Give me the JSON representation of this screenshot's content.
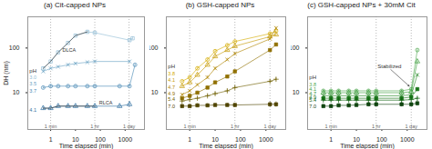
{
  "chart_data": [
    {
      "type": "line",
      "title": "(a) Cit-capped NPs",
      "xlabel": "Time elapsed (min)",
      "ylabel": "DH (nm)",
      "log": true,
      "xlim": [
        0.12,
        6000
      ],
      "ylim": [
        1.5,
        500
      ],
      "xticks": [
        1,
        10,
        100,
        1000
      ],
      "yticks": [
        10,
        100
      ],
      "vlines": [
        1,
        60,
        1440
      ],
      "series": [
        {
          "name": "3.0",
          "color": "#92bdd6",
          "marker": "open-square",
          "x": [
            0.5,
            1,
            2,
            5,
            10,
            30,
            60,
            1500,
            2000
          ],
          "values": [
            35,
            50,
            80,
            130,
            190,
            230,
            220,
            150,
            165
          ],
          "yerr": [
            3,
            4,
            6,
            10,
            15,
            20,
            18,
            12,
            14
          ],
          "label_xy": [
            0.14,
            22
          ]
        },
        {
          "name": "3.5",
          "color": "#6ba3c4",
          "marker": "x",
          "x": [
            0.5,
            1,
            2,
            5,
            10,
            30,
            60,
            1500
          ],
          "values": [
            30,
            35,
            38,
            42,
            45,
            48,
            50,
            50
          ],
          "yerr": [
            2,
            2,
            2,
            3,
            3,
            3,
            3,
            3
          ],
          "label_xy": [
            0.14,
            16
          ]
        },
        {
          "name": "3.7",
          "color": "#4a8ab5",
          "marker": "open-circle",
          "x": [
            0.5,
            1,
            2,
            5,
            10,
            30,
            60,
            600,
            1500,
            2500
          ],
          "values": [
            13,
            14,
            14,
            14,
            14,
            14,
            14,
            14,
            14,
            42
          ],
          "yerr": [
            1,
            1,
            1,
            1,
            1,
            1,
            1,
            1,
            1,
            3
          ],
          "label_xy": [
            0.14,
            11
          ]
        },
        {
          "name": "4.1",
          "color": "#3070a0",
          "marker": "open-triangle",
          "x": [
            0.5,
            1,
            2,
            5,
            10,
            30,
            60,
            600,
            1500
          ],
          "values": [
            4.5,
            4.5,
            5,
            5,
            5,
            5,
            5,
            5,
            5.5
          ],
          "yerr": [
            0.5,
            0.5,
            0.5,
            0.5,
            0.5,
            0.5,
            0.5,
            0.5,
            0.8
          ],
          "label_xy": [
            0.14,
            4.0
          ]
        },
        {
          "name": "DLCA",
          "color": "#333333",
          "x": [
            0.5,
            1,
            2,
            5,
            10,
            30
          ],
          "values": [
            35,
            50,
            80,
            130,
            190,
            230
          ],
          "label_xy": [
            3,
            90
          ]
        },
        {
          "name": "RLCA",
          "color": "#333333",
          "x": [
            0.5,
            1,
            2,
            5,
            10,
            30,
            60
          ],
          "values": [
            4.5,
            4.5,
            5,
            5,
            5,
            5,
            5
          ],
          "label_xy": [
            90,
            5.8
          ]
        }
      ],
      "annotations": [
        {
          "text": "1 min",
          "x": 1,
          "y": 1.6,
          "color": "#666666"
        },
        {
          "text": "1 hr",
          "x": 60,
          "y": 1.6,
          "color": "#666666"
        },
        {
          "text": "1 day",
          "x": 1440,
          "y": 1.6,
          "color": "#666666"
        },
        {
          "text": "pH",
          "x": 0.14,
          "y": 30,
          "color": "#333333"
        }
      ]
    },
    {
      "type": "line",
      "title": "(b) GSH-capped NPs",
      "xlabel": "Time elapsed (min)",
      "log": true,
      "xlim": [
        0.12,
        6000
      ],
      "ylim": [
        1.5,
        500
      ],
      "xticks": [
        1,
        10,
        100,
        1000
      ],
      "yticks": [
        10,
        100
      ],
      "vlines": [
        1,
        60,
        1440
      ],
      "series": [
        {
          "name": "3.8",
          "color": "#d4aa00",
          "marker": "open-circle",
          "x": [
            0.5,
            1,
            2,
            5,
            10,
            30,
            60,
            1440,
            2500
          ],
          "values": [
            18,
            22,
            35,
            55,
            85,
            115,
            140,
            210,
            240
          ],
          "yerr": [
            1,
            2,
            3,
            5,
            7,
            9,
            11,
            16,
            18
          ],
          "label_xy": [
            0.14,
            26
          ]
        },
        {
          "name": "4.1",
          "color": "#c49800",
          "marker": "open-triangle",
          "x": [
            0.5,
            1,
            2,
            5,
            10,
            30,
            60,
            1440,
            2500
          ],
          "values": [
            14,
            17,
            25,
            42,
            65,
            90,
            110,
            180,
            200
          ],
          "yerr": [
            1,
            1,
            2,
            3,
            5,
            7,
            9,
            14,
            16
          ],
          "label_xy": [
            0.14,
            19
          ]
        },
        {
          "name": "4.7",
          "color": "#b08500",
          "marker": "x",
          "x": [
            0.5,
            1,
            2,
            5,
            10,
            30,
            60,
            1440,
            2500
          ],
          "values": [
            9,
            11,
            15,
            22,
            35,
            55,
            75,
            160,
            280
          ],
          "yerr": [
            0.7,
            0.8,
            1,
            2,
            3,
            4,
            6,
            12,
            22
          ],
          "label_xy": [
            0.14,
            13
          ]
        },
        {
          "name": "4.9",
          "color": "#907000",
          "marker": "square",
          "x": [
            0.5,
            1,
            2,
            5,
            10,
            30,
            60,
            1440,
            2500
          ],
          "values": [
            7.5,
            8.5,
            10,
            13,
            17,
            23,
            30,
            90,
            120
          ],
          "yerr": [
            0.5,
            0.7,
            0.8,
            1,
            1.3,
            1.8,
            2.4,
            7,
            9
          ],
          "label_xy": [
            0.14,
            9.5
          ]
        },
        {
          "name": "5.4",
          "color": "#706000",
          "marker": "plus",
          "x": [
            0.5,
            1,
            2,
            5,
            10,
            30,
            60,
            1440,
            2500
          ],
          "values": [
            6.5,
            7,
            7.5,
            8.5,
            9.5,
            11,
            13,
            18,
            20
          ],
          "yerr": [
            0.5,
            0.5,
            0.6,
            0.7,
            0.8,
            0.9,
            1,
            1.4,
            1.6
          ],
          "label_xy": [
            0.14,
            7.2
          ]
        },
        {
          "name": "7.0",
          "color": "#504500",
          "marker": "square",
          "x": [
            0.5,
            1,
            2,
            5,
            10,
            30,
            60,
            1440,
            2500
          ],
          "values": [
            5,
            5,
            5.2,
            5.2,
            5.3,
            5.3,
            5.3,
            5.5,
            5.5
          ],
          "yerr": [
            0.5,
            0.5,
            0.5,
            0.5,
            0.5,
            0.5,
            0.5,
            0.8,
            0.8
          ],
          "label_xy": [
            0.14,
            5.0
          ]
        }
      ],
      "annotations": [
        {
          "text": "1 min",
          "x": 1,
          "y": 1.6,
          "color": "#666666"
        },
        {
          "text": "1 hr",
          "x": 60,
          "y": 1.6,
          "color": "#666666"
        },
        {
          "text": "1 day",
          "x": 1440,
          "y": 1.6,
          "color": "#666666"
        },
        {
          "text": "pH",
          "x": 0.14,
          "y": 38,
          "color": "#333333"
        }
      ]
    },
    {
      "type": "line",
      "title": "(c) GSH-capped NPs + 30mM Cit",
      "xlabel": "Time elapsed (min)",
      "log": true,
      "xlim": [
        0.12,
        6000
      ],
      "ylim": [
        1.5,
        500
      ],
      "xticks": [
        1,
        10,
        100,
        1000
      ],
      "yticks": [
        10,
        100
      ],
      "vlines": [
        1,
        60,
        1440
      ],
      "series": [
        {
          "name": "3.8",
          "color": "#55aa55",
          "marker": "open-circle",
          "x": [
            0.5,
            1,
            2,
            5,
            10,
            30,
            60,
            600,
            1440,
            2500
          ],
          "values": [
            11,
            11,
            11,
            11,
            11,
            11,
            11,
            11,
            12,
            90
          ],
          "yerr": [
            0.8,
            0.8,
            0.8,
            0.8,
            0.8,
            0.8,
            0.8,
            0.8,
            0.9,
            7
          ],
          "label_xy": [
            0.14,
            15
          ]
        },
        {
          "name": "4.1",
          "color": "#3d9e3d",
          "marker": "open-triangle",
          "x": [
            0.5,
            1,
            2,
            5,
            10,
            30,
            60,
            600,
            1440,
            2500
          ],
          "values": [
            10,
            10,
            10,
            10,
            10,
            10,
            10,
            10,
            10.5,
            50
          ],
          "yerr": [
            0.7,
            0.7,
            0.7,
            0.7,
            0.7,
            0.7,
            0.7,
            0.7,
            0.8,
            4
          ],
          "label_xy": [
            0.14,
            12
          ]
        },
        {
          "name": "4.7",
          "color": "#2a8a2a",
          "marker": "x",
          "x": [
            0.5,
            1,
            2,
            5,
            10,
            30,
            60,
            600,
            1440,
            2500
          ],
          "values": [
            8.5,
            8.5,
            8.5,
            8.5,
            8.5,
            8.5,
            8.5,
            8.5,
            9,
            25
          ],
          "yerr": [
            0.6,
            0.6,
            0.6,
            0.6,
            0.6,
            0.6,
            0.6,
            0.6,
            0.7,
            2
          ],
          "label_xy": [
            0.14,
            9.5
          ]
        },
        {
          "name": "4.9",
          "color": "#1a751a",
          "marker": "square",
          "x": [
            0.5,
            1,
            2,
            5,
            10,
            30,
            60,
            600,
            1440,
            2500
          ],
          "values": [
            7.5,
            7.5,
            7.5,
            7.5,
            7.5,
            7.5,
            7.5,
            7.5,
            8,
            12
          ],
          "yerr": [
            0.5,
            0.5,
            0.5,
            0.5,
            0.5,
            0.5,
            0.5,
            0.5,
            0.6,
            1
          ],
          "label_xy": [
            0.14,
            8
          ]
        },
        {
          "name": "5.4",
          "color": "#0f620f",
          "marker": "plus",
          "x": [
            0.5,
            1,
            2,
            5,
            10,
            30,
            60,
            600,
            1440,
            2500
          ],
          "values": [
            6.8,
            6.8,
            6.8,
            6.8,
            6.8,
            6.8,
            6.8,
            6.8,
            7,
            7.5
          ],
          "yerr": [
            0.5,
            0.5,
            0.5,
            0.5,
            0.5,
            0.5,
            0.5,
            0.5,
            0.5,
            0.6
          ],
          "label_xy": [
            0.14,
            6.8
          ]
        },
        {
          "name": "7.0",
          "color": "#104510",
          "marker": "square",
          "x": [
            0.5,
            1,
            2,
            5,
            10,
            30,
            60,
            600,
            1440,
            2500
          ],
          "values": [
            5,
            5,
            5.2,
            5.2,
            5.3,
            5.5,
            5.5,
            5.5,
            5.5,
            5.8
          ],
          "yerr": [
            0.5,
            0.5,
            0.5,
            0.5,
            0.5,
            0.7,
            0.7,
            0.7,
            0.7,
            0.8
          ],
          "label_xy": [
            0.14,
            5.0
          ]
        }
      ],
      "annotations": [
        {
          "text": "1 min",
          "x": 1,
          "y": 1.6,
          "color": "#666666"
        },
        {
          "text": "1 hr",
          "x": 60,
          "y": 1.6,
          "color": "#666666"
        },
        {
          "text": "1 day",
          "x": 1440,
          "y": 1.6,
          "color": "#666666"
        },
        {
          "text": "pH",
          "x": 0.14,
          "y": 22,
          "color": "#333333"
        },
        {
          "text": "Stabilized",
          "x": 200,
          "y": 35,
          "color": "#333333",
          "arrow_to": [
            1200,
            14
          ]
        }
      ]
    }
  ]
}
